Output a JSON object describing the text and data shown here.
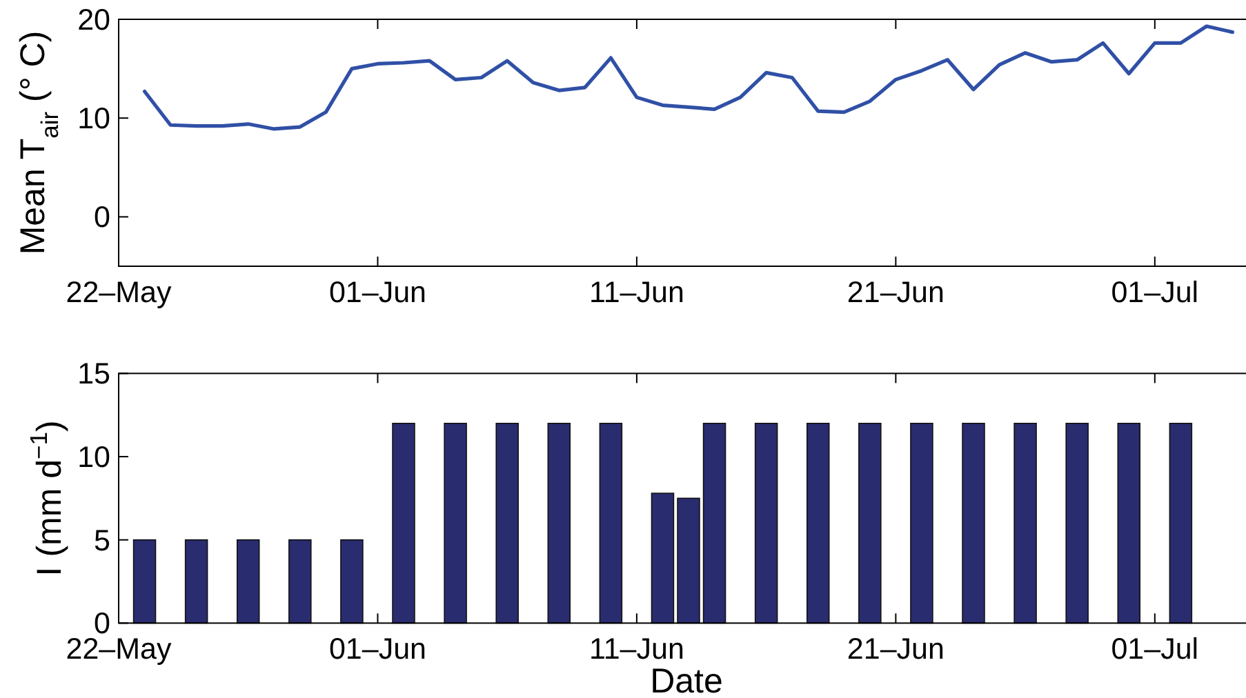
{
  "chart_data": [
    {
      "type": "line",
      "ylabel": "Mean T$_{air}$ (° C)",
      "x": [
        "--05-23",
        "--05-24",
        "--05-25",
        "--05-26",
        "--05-27",
        "--05-28",
        "--05-29",
        "--05-30",
        "--05-31",
        "--06-01",
        "--06-02",
        "--06-03",
        "--06-04",
        "--06-05",
        "--06-06",
        "--06-07",
        "--06-08",
        "--06-09",
        "--06-10",
        "--06-11",
        "--06-12",
        "--06-13",
        "--06-14",
        "--06-15",
        "--06-16",
        "--06-17",
        "--06-18",
        "--06-19",
        "--06-20",
        "--06-21",
        "--06-22",
        "--06-23",
        "--06-24",
        "--06-25",
        "--06-26",
        "--06-27",
        "--06-28",
        "--06-29",
        "--06-30",
        "--07-01",
        "--07-02",
        "--07-03",
        "--07-04"
      ],
      "values": [
        12.7,
        9.3,
        9.2,
        9.2,
        9.4,
        8.9,
        9.1,
        10.6,
        15.0,
        15.5,
        15.6,
        15.8,
        13.9,
        14.1,
        15.8,
        13.6,
        12.8,
        13.1,
        16.1,
        12.1,
        11.3,
        11.1,
        10.9,
        12.1,
        14.6,
        14.1,
        10.7,
        10.6,
        11.7,
        13.9,
        14.8,
        15.9,
        12.9,
        15.4,
        16.6,
        15.7,
        15.9,
        17.6,
        14.5,
        17.6,
        17.6,
        19.3,
        18.7
      ],
      "color": "#3050a6",
      "xlim": [
        "--05-22",
        "--07-05"
      ],
      "xticks": [
        {
          "value": "--05-22",
          "label": "22–May"
        },
        {
          "value": "--06-01",
          "label": "01–Jun"
        },
        {
          "value": "--06-11",
          "label": "11–Jun"
        },
        {
          "value": "--06-21",
          "label": "21–Jun"
        },
        {
          "value": "--07-01",
          "label": "01–Jul"
        }
      ],
      "ylim": [
        -5,
        20
      ],
      "yticks": [
        0,
        10,
        20
      ]
    },
    {
      "type": "bar",
      "xlabel": "Date",
      "ylabel": "I (mm d$^{−1}$)",
      "x": [
        "--05-23",
        "--05-25",
        "--05-27",
        "--05-29",
        "--05-31",
        "--06-02",
        "--06-04",
        "--06-06",
        "--06-08",
        "--06-10",
        "--06-12",
        "--06-13",
        "--06-14",
        "--06-16",
        "--06-18",
        "--06-20",
        "--06-22",
        "--06-24",
        "--06-26",
        "--06-28",
        "--06-30",
        "--07-02"
      ],
      "values": [
        5,
        5,
        5,
        5,
        5,
        12,
        12,
        12,
        12,
        12,
        7.8,
        7.5,
        12,
        12,
        12,
        12,
        12,
        12,
        12,
        12,
        12,
        12
      ],
      "color": "#2a2c70",
      "xlim": [
        "--05-22",
        "--07-05"
      ],
      "xticks": [
        {
          "value": "--05-22",
          "label": "22–May"
        },
        {
          "value": "--06-01",
          "label": "01–Jun"
        },
        {
          "value": "--06-11",
          "label": "11–Jun"
        },
        {
          "value": "--06-21",
          "label": "21–Jun"
        },
        {
          "value": "--07-01",
          "label": "01–Jul"
        }
      ],
      "ylim": [
        0,
        15
      ],
      "yticks": [
        0,
        5,
        10,
        15
      ]
    }
  ]
}
